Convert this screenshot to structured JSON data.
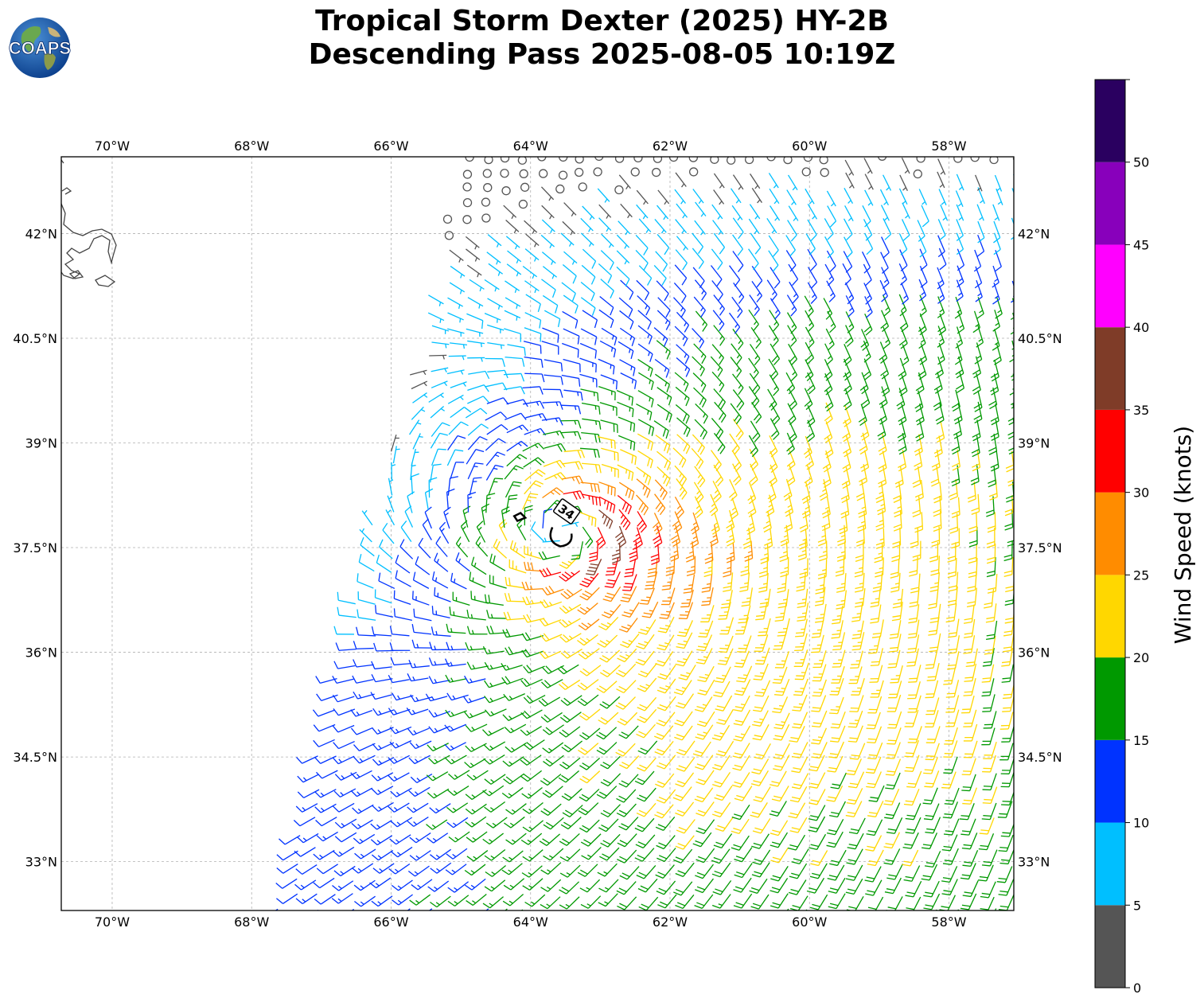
{
  "title": {
    "line1": "Tropical Storm Dexter (2025) HY-2B",
    "line2": "Descending Pass 2025-08-05 10:19Z"
  },
  "logo": {
    "text": "COAPS",
    "icon": "earth-globe-logo"
  },
  "map": {
    "lon_range": [
      -70.73,
      -57.07
    ],
    "lat_range": [
      32.3,
      43.1
    ],
    "lon_ticks": [
      "70°W",
      "68°W",
      "66°W",
      "64°W",
      "62°W",
      "60°W",
      "58°W"
    ],
    "lon_tick_values": [
      -70,
      -68,
      -66,
      -64,
      -62,
      -60,
      -58
    ],
    "lat_ticks": [
      "42°N",
      "40.5°N",
      "39°N",
      "37.5°N",
      "36°N",
      "34.5°N",
      "33°N"
    ],
    "lat_tick_values": [
      42,
      40.5,
      39,
      37.5,
      36,
      34.5,
      33
    ],
    "grid": true,
    "storm_center": {
      "lon": -63.55,
      "lat": 37.7
    },
    "wind_radius_label": "34"
  },
  "colorbar": {
    "title": "Wind Speed (knots)",
    "ticks": [
      "0",
      "5",
      "10",
      "15",
      "20",
      "25",
      "30",
      "35",
      "40",
      "45",
      "50"
    ],
    "bins": [
      {
        "min": 0,
        "max": 5,
        "color": "#555555"
      },
      {
        "min": 5,
        "max": 10,
        "color": "#00bfff"
      },
      {
        "min": 10,
        "max": 15,
        "color": "#0033ff"
      },
      {
        "min": 15,
        "max": 20,
        "color": "#009900"
      },
      {
        "min": 20,
        "max": 25,
        "color": "#ffd700"
      },
      {
        "min": 25,
        "max": 30,
        "color": "#ff8c00"
      },
      {
        "min": 30,
        "max": 35,
        "color": "#ff0000"
      },
      {
        "min": 35,
        "max": 40,
        "color": "#7f3c28"
      },
      {
        "min": 40,
        "max": 45,
        "color": "#ff00ff"
      },
      {
        "min": 45,
        "max": 50,
        "color": "#8800bb"
      },
      {
        "min": 50,
        "max": 55,
        "color": "#2a0060"
      }
    ]
  }
}
